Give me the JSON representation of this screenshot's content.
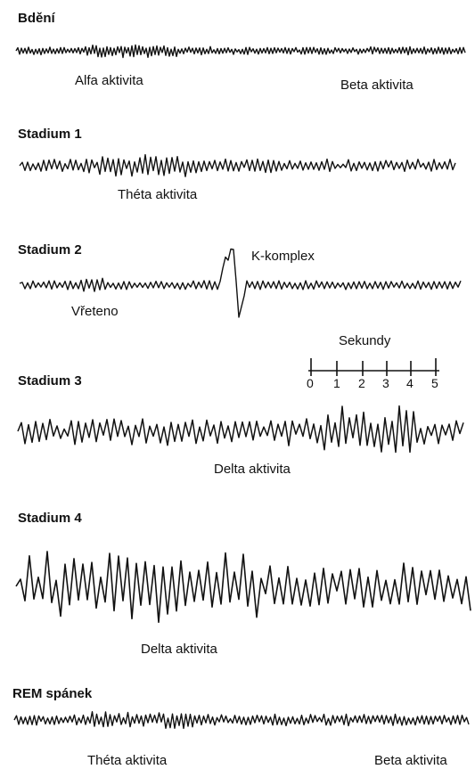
{
  "colors": {
    "ink": "#111111",
    "background": "#ffffff"
  },
  "stages": [
    {
      "title": "Bdění",
      "labels": [
        "Alfa aktivita",
        "Beta aktivita"
      ]
    },
    {
      "title": "Stadium 1",
      "labels": [
        "Théta aktivita"
      ]
    },
    {
      "title": "Stadium 2",
      "labels": [
        "K-komplex",
        "Vřeteno"
      ]
    },
    {
      "title": "Stadium 3",
      "labels": [
        "Delta aktivita"
      ]
    },
    {
      "title": "Stadium 4",
      "labels": [
        "Delta aktivita"
      ]
    },
    {
      "title": "REM spánek",
      "labels": [
        "Théta aktivita",
        "Beta aktivita"
      ]
    }
  ],
  "timescale": {
    "title": "Sekundy",
    "ticks": [
      "0",
      "1",
      "2",
      "3",
      "4",
      "5"
    ]
  }
}
